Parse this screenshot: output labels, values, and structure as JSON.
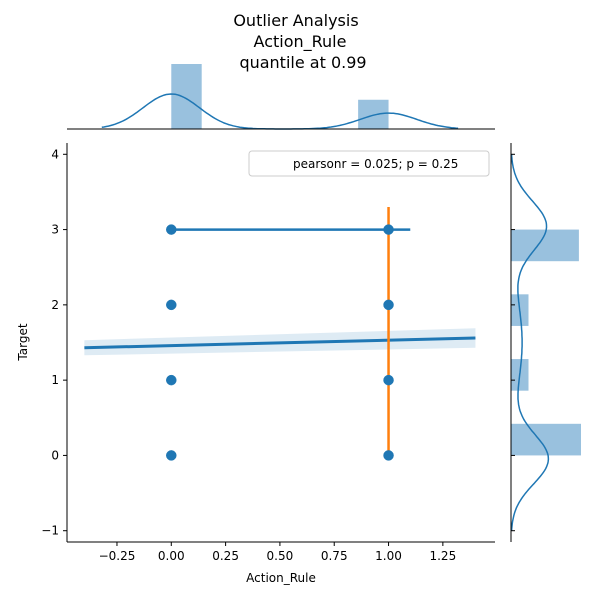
{
  "chart_data": {
    "type": "scatter",
    "title_lines": [
      "Outlier Analysis",
      "Action_Rule",
      "quantile at 0.99"
    ],
    "xlabel": "Action_Rule",
    "ylabel": "Target",
    "xlim": [
      -0.48,
      1.49
    ],
    "ylim": [
      -1.15,
      4.15
    ],
    "x_ticks": [
      -0.25,
      0.0,
      0.25,
      0.5,
      0.75,
      1.0,
      1.25
    ],
    "x_tick_labels": [
      "−0.25",
      "0.00",
      "0.25",
      "0.50",
      "0.75",
      "1.00",
      "1.25"
    ],
    "y_ticks": [
      -1,
      0,
      1,
      2,
      3,
      4
    ],
    "y_tick_labels": [
      "−1",
      "0",
      "1",
      "2",
      "3",
      "4"
    ],
    "legend": {
      "text": "pearsonr = 0.025; p = 0.25",
      "position": "top-right"
    },
    "points": [
      {
        "x": 0,
        "y": 0
      },
      {
        "x": 0,
        "y": 1
      },
      {
        "x": 0,
        "y": 2
      },
      {
        "x": 0,
        "y": 3
      },
      {
        "x": 1,
        "y": 0
      },
      {
        "x": 1,
        "y": 1
      },
      {
        "x": 1,
        "y": 2
      },
      {
        "x": 1,
        "y": 3
      }
    ],
    "regression": {
      "x": [
        -0.4,
        1.4
      ],
      "y": [
        1.43,
        1.56
      ],
      "ci_upper": [
        1.53,
        1.69
      ],
      "ci_lower": [
        1.33,
        1.43
      ]
    },
    "outlier_segments": [
      {
        "orientation": "horizontal",
        "y": 3.0,
        "x": [
          0.0,
          1.1
        ]
      },
      {
        "orientation": "vertical",
        "x": 1.0,
        "y": [
          0.0,
          3.3
        ]
      }
    ],
    "top_marginal": {
      "hist": [
        {
          "start": 0.0,
          "end": 0.14,
          "height": 1.0
        },
        {
          "start": 0.86,
          "end": 1.0,
          "height": 0.45
        }
      ],
      "kde_range": [
        -0.32,
        1.32
      ]
    },
    "right_marginal": {
      "hist": [
        {
          "start": -0.0,
          "end": 0.42,
          "width": 1.0
        },
        {
          "start": 0.86,
          "end": 1.28,
          "width": 0.25
        },
        {
          "start": 1.72,
          "end": 2.14,
          "width": 0.25
        },
        {
          "start": 2.58,
          "end": 3.0,
          "width": 0.97
        }
      ],
      "kde_range": [
        -1.0,
        4.0
      ]
    },
    "colors": {
      "points": "#1f77b4",
      "regression": "#1f77b4",
      "ci_band": "#1f77b4",
      "outlier": "#ff7f0e",
      "hist": "#7fb1d6",
      "kde": "#1f77b4"
    }
  }
}
